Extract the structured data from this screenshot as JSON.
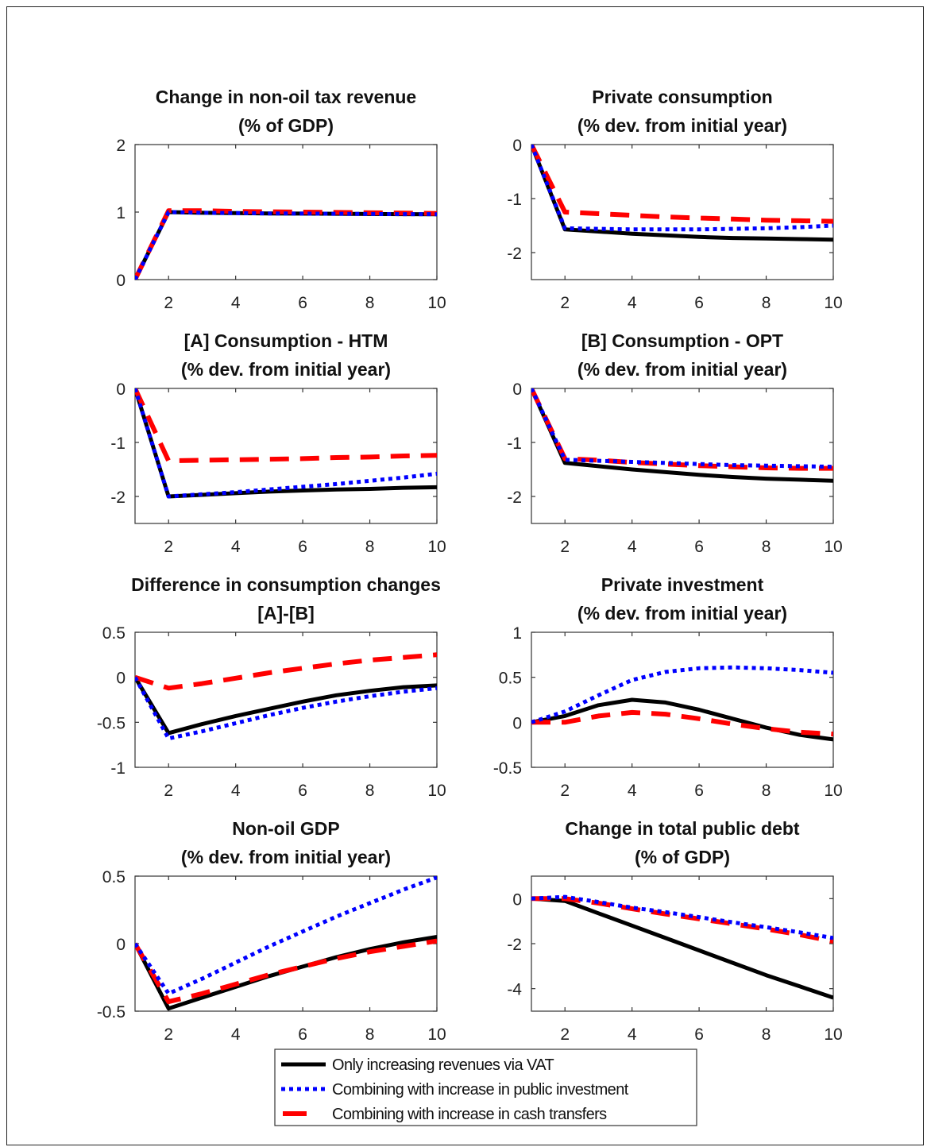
{
  "chart_data": [
    {
      "type": "line",
      "title": "Change in non-oil tax revenue",
      "subtitle": "(% of GDP)",
      "xlim": [
        1,
        10
      ],
      "ylim": [
        0,
        2
      ],
      "xticks": [
        "2",
        "4",
        "6",
        "8",
        "10"
      ],
      "yticks": [
        "0",
        "1",
        "2"
      ],
      "x": [
        1,
        2,
        3,
        4,
        5,
        6,
        7,
        8,
        9,
        10
      ],
      "series": [
        {
          "name": "Only increasing revenues via VAT",
          "values": [
            0,
            1.0,
            0.99,
            0.985,
            0.98,
            0.978,
            0.975,
            0.972,
            0.97,
            0.968
          ]
        },
        {
          "name": "Combining with increase in public investment",
          "values": [
            0,
            1.0,
            0.99,
            0.985,
            0.98,
            0.978,
            0.975,
            0.972,
            0.97,
            0.968
          ]
        },
        {
          "name": "Combining with increase in cash transfers",
          "values": [
            0,
            1.02,
            1.02,
            1.01,
            1.005,
            1.0,
            0.995,
            0.99,
            0.985,
            0.98
          ]
        }
      ]
    },
    {
      "type": "line",
      "title": "Private consumption",
      "subtitle": "(% dev. from initial year)",
      "xlim": [
        1,
        10
      ],
      "ylim": [
        -2.5,
        0
      ],
      "xticks": [
        "2",
        "4",
        "6",
        "8",
        "10"
      ],
      "yticks": [
        "0",
        "-1",
        "-2"
      ],
      "x": [
        1,
        2,
        3,
        4,
        5,
        6,
        7,
        8,
        9,
        10
      ],
      "series": [
        {
          "name": "Only increasing revenues via VAT",
          "values": [
            0,
            -1.57,
            -1.61,
            -1.65,
            -1.68,
            -1.71,
            -1.73,
            -1.74,
            -1.75,
            -1.76
          ]
        },
        {
          "name": "Combining with increase in public investment",
          "values": [
            0,
            -1.55,
            -1.56,
            -1.57,
            -1.57,
            -1.57,
            -1.56,
            -1.55,
            -1.53,
            -1.5
          ]
        },
        {
          "name": "Combining with increase in cash transfers",
          "values": [
            0,
            -1.25,
            -1.28,
            -1.31,
            -1.34,
            -1.36,
            -1.38,
            -1.4,
            -1.41,
            -1.42
          ]
        }
      ]
    },
    {
      "type": "line",
      "title": "[A] Consumption - HTM",
      "subtitle": "(% dev. from initial year)",
      "xlim": [
        1,
        10
      ],
      "ylim": [
        -2.5,
        0
      ],
      "xticks": [
        "2",
        "4",
        "6",
        "8",
        "10"
      ],
      "yticks": [
        "0",
        "-1",
        "-2"
      ],
      "x": [
        1,
        2,
        3,
        4,
        5,
        6,
        7,
        8,
        9,
        10
      ],
      "series": [
        {
          "name": "Only increasing revenues via VAT",
          "values": [
            0,
            -2.0,
            -1.97,
            -1.94,
            -1.91,
            -1.89,
            -1.87,
            -1.86,
            -1.84,
            -1.83
          ]
        },
        {
          "name": "Combining with increase in public investment",
          "values": [
            0,
            -2.0,
            -1.96,
            -1.92,
            -1.87,
            -1.82,
            -1.77,
            -1.71,
            -1.65,
            -1.58
          ]
        },
        {
          "name": "Combining with increase in cash transfers",
          "values": [
            0,
            -1.34,
            -1.33,
            -1.32,
            -1.31,
            -1.3,
            -1.28,
            -1.27,
            -1.25,
            -1.24
          ]
        }
      ]
    },
    {
      "type": "line",
      "title": "[B] Consumption - OPT",
      "subtitle": "(% dev. from initial year)",
      "xlim": [
        1,
        10
      ],
      "ylim": [
        -2.5,
        0
      ],
      "xticks": [
        "2",
        "4",
        "6",
        "8",
        "10"
      ],
      "yticks": [
        "0",
        "-1",
        "-2"
      ],
      "x": [
        1,
        2,
        3,
        4,
        5,
        6,
        7,
        8,
        9,
        10
      ],
      "series": [
        {
          "name": "Only increasing revenues via VAT",
          "values": [
            0,
            -1.38,
            -1.44,
            -1.5,
            -1.55,
            -1.6,
            -1.64,
            -1.67,
            -1.69,
            -1.71
          ]
        },
        {
          "name": "Combining with increase in public investment",
          "values": [
            0,
            -1.32,
            -1.34,
            -1.36,
            -1.38,
            -1.4,
            -1.42,
            -1.43,
            -1.44,
            -1.45
          ]
        },
        {
          "name": "Combining with increase in cash transfers",
          "values": [
            0,
            -1.3,
            -1.33,
            -1.37,
            -1.4,
            -1.43,
            -1.45,
            -1.47,
            -1.48,
            -1.48
          ]
        }
      ]
    },
    {
      "type": "line",
      "title": "Difference in consumption changes",
      "subtitle": "[A]-[B]",
      "xlim": [
        1,
        10
      ],
      "ylim": [
        -1,
        0.5
      ],
      "xticks": [
        "2",
        "4",
        "6",
        "8",
        "10"
      ],
      "yticks": [
        "0.5",
        "0",
        "-0.5",
        "-1"
      ],
      "x": [
        1,
        2,
        3,
        4,
        5,
        6,
        7,
        8,
        9,
        10
      ],
      "series": [
        {
          "name": "Only increasing revenues via VAT",
          "values": [
            0,
            -0.62,
            -0.52,
            -0.43,
            -0.35,
            -0.27,
            -0.2,
            -0.15,
            -0.11,
            -0.09
          ]
        },
        {
          "name": "Combining with increase in public investment",
          "values": [
            0,
            -0.68,
            -0.6,
            -0.51,
            -0.42,
            -0.34,
            -0.27,
            -0.21,
            -0.16,
            -0.12
          ]
        },
        {
          "name": "Combining with increase in cash transfers",
          "values": [
            0,
            -0.12,
            -0.07,
            -0.01,
            0.05,
            0.1,
            0.15,
            0.19,
            0.22,
            0.25
          ]
        }
      ]
    },
    {
      "type": "line",
      "title": "Private investment",
      "subtitle": "(% dev. from initial year)",
      "xlim": [
        1,
        10
      ],
      "ylim": [
        -0.5,
        1
      ],
      "xticks": [
        "2",
        "4",
        "6",
        "8",
        "10"
      ],
      "yticks": [
        "1",
        "0.5",
        "0",
        "-0.5"
      ],
      "x": [
        1,
        2,
        3,
        4,
        5,
        6,
        7,
        8,
        9,
        10
      ],
      "series": [
        {
          "name": "Only increasing revenues via VAT",
          "values": [
            0,
            0.07,
            0.19,
            0.25,
            0.22,
            0.14,
            0.04,
            -0.06,
            -0.14,
            -0.19
          ]
        },
        {
          "name": "Combining with increase in public investment",
          "values": [
            0,
            0.12,
            0.3,
            0.47,
            0.56,
            0.6,
            0.61,
            0.6,
            0.58,
            0.55
          ]
        },
        {
          "name": "Combining with increase in cash transfers",
          "values": [
            0,
            0.0,
            0.07,
            0.11,
            0.09,
            0.04,
            -0.02,
            -0.07,
            -0.11,
            -0.13
          ]
        }
      ]
    },
    {
      "type": "line",
      "title": "Non-oil GDP",
      "subtitle": "(% dev. from initial year)",
      "xlim": [
        1,
        10
      ],
      "ylim": [
        -0.5,
        0.5
      ],
      "xticks": [
        "2",
        "4",
        "6",
        "8",
        "10"
      ],
      "yticks": [
        "0.5",
        "0",
        "-0.5"
      ],
      "x": [
        1,
        2,
        3,
        4,
        5,
        6,
        7,
        8,
        9,
        10
      ],
      "series": [
        {
          "name": "Only increasing revenues via VAT",
          "values": [
            0,
            -0.48,
            -0.4,
            -0.32,
            -0.24,
            -0.17,
            -0.1,
            -0.04,
            0.01,
            0.05
          ]
        },
        {
          "name": "Combining with increase in public investment",
          "values": [
            0,
            -0.37,
            -0.26,
            -0.14,
            -0.02,
            0.09,
            0.2,
            0.3,
            0.4,
            0.49
          ]
        },
        {
          "name": "Combining with increase in cash transfers",
          "values": [
            0,
            -0.43,
            -0.37,
            -0.3,
            -0.23,
            -0.17,
            -0.11,
            -0.06,
            -0.02,
            0.02
          ]
        }
      ]
    },
    {
      "type": "line",
      "title": "Change in total public debt",
      "subtitle": "(% of GDP)",
      "xlim": [
        1,
        10
      ],
      "ylim": [
        -5,
        1
      ],
      "xticks": [
        "2",
        "4",
        "6",
        "8",
        "10"
      ],
      "yticks": [
        "0",
        "-2",
        "-4"
      ],
      "x": [
        1,
        2,
        3,
        4,
        5,
        6,
        7,
        8,
        9,
        10
      ],
      "series": [
        {
          "name": "Only increasing revenues via VAT",
          "values": [
            0,
            -0.1,
            -0.65,
            -1.2,
            -1.75,
            -2.3,
            -2.85,
            -3.4,
            -3.9,
            -4.4
          ]
        },
        {
          "name": "Combining with increase in public investment",
          "values": [
            0,
            0.08,
            -0.15,
            -0.4,
            -0.6,
            -0.82,
            -1.05,
            -1.27,
            -1.5,
            -1.75
          ]
        },
        {
          "name": "Combining with increase in cash transfers",
          "values": [
            0,
            0.0,
            -0.2,
            -0.45,
            -0.68,
            -0.9,
            -1.12,
            -1.35,
            -1.6,
            -1.9
          ]
        }
      ]
    }
  ],
  "legend": {
    "placement": "bottom-center",
    "items": [
      {
        "label": "Only increasing revenues via VAT",
        "color": "#000000",
        "style": "solid"
      },
      {
        "label": "Combining with increase in public investment",
        "color": "#0000ff",
        "style": "dotted"
      },
      {
        "label": "Combining with increase in cash transfers",
        "color": "#ff0000",
        "style": "dashed"
      }
    ]
  }
}
